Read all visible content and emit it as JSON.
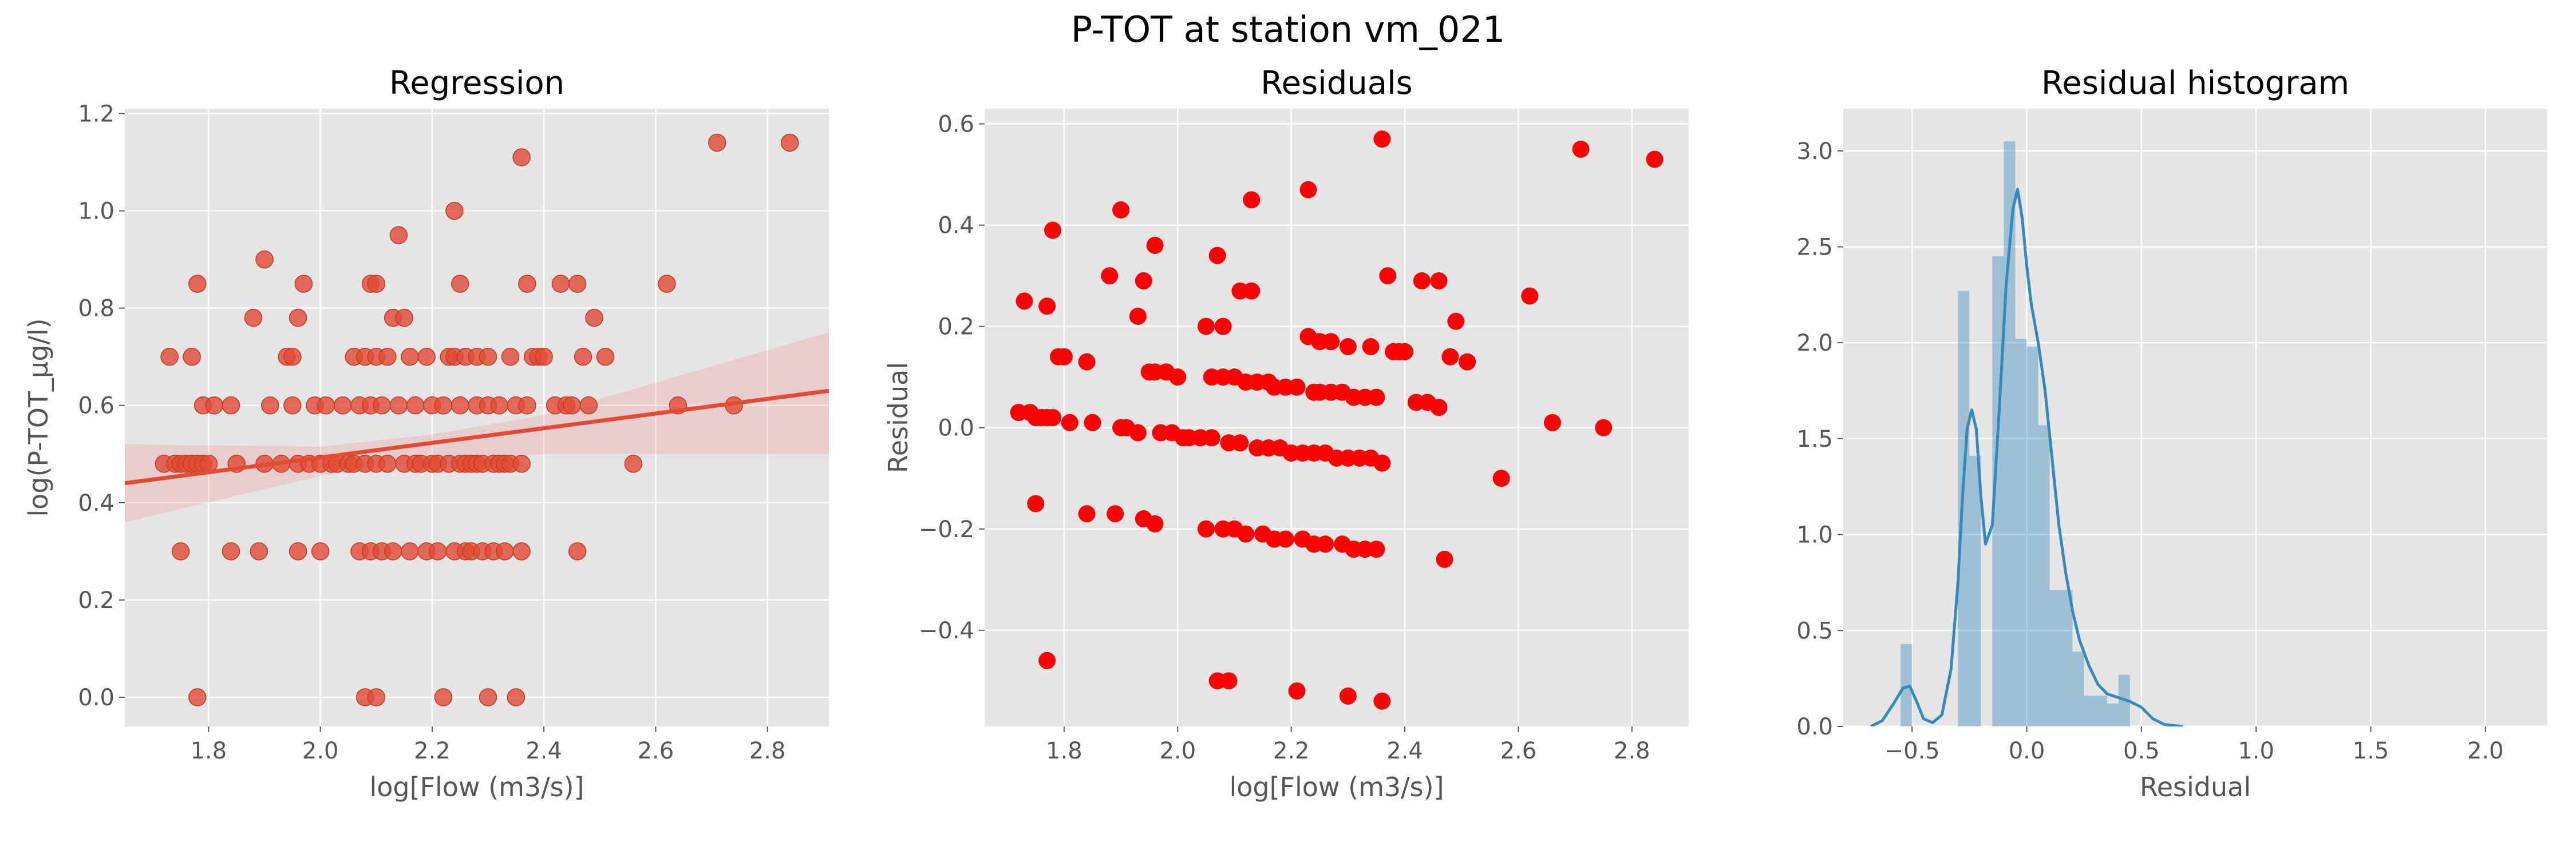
{
  "figure": {
    "title": "P-TOT at station vm_021"
  },
  "chart_data": [
    {
      "type": "scatter",
      "title": "Regression",
      "xlabel": "log[Flow (m3/s)]",
      "ylabel": "log(P-TOT_µg/l)",
      "xlim": [
        1.65,
        2.91
      ],
      "ylim": [
        -0.06,
        1.21
      ],
      "xticks": [
        1.8,
        2.0,
        2.2,
        2.4,
        2.6,
        2.8
      ],
      "yticks": [
        0.0,
        0.2,
        0.4,
        0.6,
        0.8,
        1.0,
        1.2
      ],
      "grid": true,
      "point_color": "#e24a33",
      "line_color": "#e24a33",
      "band_color": "#e24a33",
      "regression_line": {
        "x": [
          1.65,
          2.91
        ],
        "y": [
          0.44,
          0.63
        ]
      },
      "confidence_band": {
        "x": [
          1.65,
          2.0,
          2.2,
          2.4,
          2.91
        ],
        "lower": [
          0.36,
          0.455,
          0.49,
          0.5,
          0.5
        ],
        "upper": [
          0.52,
          0.515,
          0.54,
          0.58,
          0.75
        ]
      },
      "points": [
        [
          1.72,
          0.48
        ],
        [
          1.73,
          0.7
        ],
        [
          1.74,
          0.48
        ],
        [
          1.75,
          0.48
        ],
        [
          1.75,
          0.3
        ],
        [
          1.76,
          0.48
        ],
        [
          1.77,
          0.7
        ],
        [
          1.77,
          0.48
        ],
        [
          1.78,
          0.85
        ],
        [
          1.78,
          0.48
        ],
        [
          1.78,
          0.0
        ],
        [
          1.79,
          0.48
        ],
        [
          1.79,
          0.6
        ],
        [
          1.8,
          0.48
        ],
        [
          1.81,
          0.6
        ],
        [
          1.84,
          0.3
        ],
        [
          1.84,
          0.6
        ],
        [
          1.85,
          0.48
        ],
        [
          1.88,
          0.78
        ],
        [
          1.89,
          0.3
        ],
        [
          1.9,
          0.48
        ],
        [
          1.9,
          0.9
        ],
        [
          1.91,
          0.6
        ],
        [
          1.93,
          0.48
        ],
        [
          1.94,
          0.7
        ],
        [
          1.95,
          0.7
        ],
        [
          1.95,
          0.6
        ],
        [
          1.96,
          0.78
        ],
        [
          1.96,
          0.48
        ],
        [
          1.96,
          0.3
        ],
        [
          1.97,
          0.85
        ],
        [
          1.98,
          0.48
        ],
        [
          1.99,
          0.6
        ],
        [
          2.0,
          0.48
        ],
        [
          2.0,
          0.3
        ],
        [
          2.01,
          0.6
        ],
        [
          2.02,
          0.48
        ],
        [
          2.03,
          0.48
        ],
        [
          2.04,
          0.6
        ],
        [
          2.05,
          0.48
        ],
        [
          2.06,
          0.7
        ],
        [
          2.06,
          0.48
        ],
        [
          2.07,
          0.3
        ],
        [
          2.07,
          0.6
        ],
        [
          2.08,
          0.7
        ],
        [
          2.08,
          0.48
        ],
        [
          2.08,
          0.0
        ],
        [
          2.09,
          0.85
        ],
        [
          2.09,
          0.3
        ],
        [
          2.09,
          0.6
        ],
        [
          2.1,
          0.85
        ],
        [
          2.1,
          0.7
        ],
        [
          2.1,
          0.48
        ],
        [
          2.1,
          0.0
        ],
        [
          2.11,
          0.6
        ],
        [
          2.11,
          0.3
        ],
        [
          2.12,
          0.7
        ],
        [
          2.12,
          0.48
        ],
        [
          2.13,
          0.78
        ],
        [
          2.13,
          0.3
        ],
        [
          2.14,
          0.95
        ],
        [
          2.14,
          0.6
        ],
        [
          2.15,
          0.78
        ],
        [
          2.15,
          0.48
        ],
        [
          2.16,
          0.7
        ],
        [
          2.16,
          0.3
        ],
        [
          2.17,
          0.48
        ],
        [
          2.17,
          0.6
        ],
        [
          2.18,
          0.48
        ],
        [
          2.19,
          0.7
        ],
        [
          2.19,
          0.3
        ],
        [
          2.2,
          0.6
        ],
        [
          2.2,
          0.48
        ],
        [
          2.21,
          0.3
        ],
        [
          2.21,
          0.48
        ],
        [
          2.22,
          0.6
        ],
        [
          2.22,
          0.0
        ],
        [
          2.23,
          0.7
        ],
        [
          2.23,
          0.48
        ],
        [
          2.24,
          1.0
        ],
        [
          2.24,
          0.7
        ],
        [
          2.24,
          0.3
        ],
        [
          2.25,
          0.48
        ],
        [
          2.25,
          0.6
        ],
        [
          2.25,
          0.85
        ],
        [
          2.26,
          0.7
        ],
        [
          2.26,
          0.48
        ],
        [
          2.26,
          0.3
        ],
        [
          2.27,
          0.48
        ],
        [
          2.27,
          0.3
        ],
        [
          2.28,
          0.6
        ],
        [
          2.28,
          0.7
        ],
        [
          2.28,
          0.48
        ],
        [
          2.29,
          0.3
        ],
        [
          2.29,
          0.48
        ],
        [
          2.3,
          0.7
        ],
        [
          2.3,
          0.6
        ],
        [
          2.3,
          0.0
        ],
        [
          2.31,
          0.48
        ],
        [
          2.31,
          0.3
        ],
        [
          2.32,
          0.6
        ],
        [
          2.32,
          0.48
        ],
        [
          2.33,
          0.48
        ],
        [
          2.33,
          0.3
        ],
        [
          2.34,
          0.7
        ],
        [
          2.34,
          0.48
        ],
        [
          2.35,
          0.6
        ],
        [
          2.35,
          0.0
        ],
        [
          2.36,
          0.48
        ],
        [
          2.36,
          0.3
        ],
        [
          2.36,
          1.11
        ],
        [
          2.37,
          0.6
        ],
        [
          2.37,
          0.85
        ],
        [
          2.38,
          0.7
        ],
        [
          2.39,
          0.7
        ],
        [
          2.4,
          0.7
        ],
        [
          2.42,
          0.6
        ],
        [
          2.43,
          0.85
        ],
        [
          2.44,
          0.6
        ],
        [
          2.45,
          0.6
        ],
        [
          2.46,
          0.85
        ],
        [
          2.46,
          0.3
        ],
        [
          2.47,
          0.7
        ],
        [
          2.48,
          0.6
        ],
        [
          2.49,
          0.78
        ],
        [
          2.51,
          0.7
        ],
        [
          2.56,
          0.48
        ],
        [
          2.62,
          0.85
        ],
        [
          2.64,
          0.6
        ],
        [
          2.71,
          1.14
        ],
        [
          2.74,
          0.6
        ],
        [
          2.84,
          1.14
        ]
      ]
    },
    {
      "type": "scatter",
      "title": "Residuals",
      "xlabel": "log[Flow (m3/s)]",
      "ylabel": "Residual",
      "xlim": [
        1.66,
        2.9
      ],
      "ylim": [
        -0.59,
        0.63
      ],
      "xticks": [
        1.8,
        2.0,
        2.2,
        2.4,
        2.6,
        2.8
      ],
      "yticks": [
        -0.4,
        -0.2,
        0.0,
        0.2,
        0.4,
        0.6
      ],
      "ytick_labels": [
        "−0.4",
        "−0.2",
        "0.0",
        "0.2",
        "0.4",
        "0.6"
      ],
      "grid": true,
      "point_color": "#ff0000",
      "points": [
        [
          1.72,
          0.03
        ],
        [
          1.73,
          0.25
        ],
        [
          1.74,
          0.03
        ],
        [
          1.75,
          0.02
        ],
        [
          1.75,
          -0.15
        ],
        [
          1.76,
          0.02
        ],
        [
          1.77,
          0.24
        ],
        [
          1.77,
          0.02
        ],
        [
          1.77,
          -0.46
        ],
        [
          1.78,
          0.39
        ],
        [
          1.78,
          0.02
        ],
        [
          1.79,
          0.14
        ],
        [
          1.8,
          0.14
        ],
        [
          1.81,
          0.01
        ],
        [
          1.84,
          -0.17
        ],
        [
          1.84,
          0.13
        ],
        [
          1.85,
          0.01
        ],
        [
          1.88,
          0.3
        ],
        [
          1.89,
          -0.17
        ],
        [
          1.9,
          0.0
        ],
        [
          1.9,
          0.43
        ],
        [
          1.91,
          0.0
        ],
        [
          1.93,
          0.22
        ],
        [
          1.93,
          -0.01
        ],
        [
          1.94,
          0.29
        ],
        [
          1.94,
          -0.18
        ],
        [
          1.95,
          0.11
        ],
        [
          1.96,
          0.36
        ],
        [
          1.96,
          0.11
        ],
        [
          1.96,
          -0.19
        ],
        [
          1.97,
          -0.01
        ],
        [
          1.98,
          0.11
        ],
        [
          1.99,
          -0.01
        ],
        [
          2.0,
          0.1
        ],
        [
          2.01,
          -0.02
        ],
        [
          2.02,
          -0.02
        ],
        [
          2.04,
          -0.02
        ],
        [
          2.05,
          0.2
        ],
        [
          2.05,
          -0.2
        ],
        [
          2.06,
          0.1
        ],
        [
          2.06,
          -0.02
        ],
        [
          2.07,
          -0.5
        ],
        [
          2.07,
          0.34
        ],
        [
          2.08,
          0.2
        ],
        [
          2.08,
          0.1
        ],
        [
          2.08,
          -0.2
        ],
        [
          2.09,
          -0.03
        ],
        [
          2.09,
          -0.5
        ],
        [
          2.1,
          0.1
        ],
        [
          2.1,
          -0.2
        ],
        [
          2.11,
          0.27
        ],
        [
          2.11,
          -0.03
        ],
        [
          2.12,
          0.09
        ],
        [
          2.12,
          -0.21
        ],
        [
          2.13,
          0.27
        ],
        [
          2.13,
          0.45
        ],
        [
          2.14,
          0.09
        ],
        [
          2.14,
          -0.04
        ],
        [
          2.15,
          -0.21
        ],
        [
          2.16,
          0.09
        ],
        [
          2.16,
          -0.04
        ],
        [
          2.17,
          0.08
        ],
        [
          2.17,
          -0.22
        ],
        [
          2.18,
          -0.04
        ],
        [
          2.19,
          0.08
        ],
        [
          2.19,
          -0.22
        ],
        [
          2.2,
          -0.05
        ],
        [
          2.21,
          0.08
        ],
        [
          2.21,
          -0.52
        ],
        [
          2.22,
          -0.05
        ],
        [
          2.22,
          -0.22
        ],
        [
          2.23,
          0.18
        ],
        [
          2.23,
          0.47
        ],
        [
          2.24,
          0.07
        ],
        [
          2.24,
          -0.05
        ],
        [
          2.24,
          -0.23
        ],
        [
          2.25,
          0.17
        ],
        [
          2.25,
          0.07
        ],
        [
          2.26,
          -0.05
        ],
        [
          2.26,
          -0.23
        ],
        [
          2.27,
          0.17
        ],
        [
          2.27,
          0.07
        ],
        [
          2.28,
          -0.06
        ],
        [
          2.29,
          -0.23
        ],
        [
          2.29,
          0.07
        ],
        [
          2.3,
          0.16
        ],
        [
          2.3,
          -0.06
        ],
        [
          2.3,
          -0.53
        ],
        [
          2.31,
          0.06
        ],
        [
          2.31,
          -0.24
        ],
        [
          2.32,
          -0.06
        ],
        [
          2.33,
          0.06
        ],
        [
          2.33,
          -0.24
        ],
        [
          2.34,
          0.16
        ],
        [
          2.34,
          -0.06
        ],
        [
          2.35,
          -0.24
        ],
        [
          2.35,
          0.06
        ],
        [
          2.36,
          0.57
        ],
        [
          2.36,
          -0.07
        ],
        [
          2.36,
          -0.54
        ],
        [
          2.37,
          0.3
        ],
        [
          2.38,
          0.15
        ],
        [
          2.39,
          0.15
        ],
        [
          2.4,
          0.15
        ],
        [
          2.42,
          0.05
        ],
        [
          2.43,
          0.29
        ],
        [
          2.44,
          0.05
        ],
        [
          2.46,
          0.04
        ],
        [
          2.46,
          0.29
        ],
        [
          2.47,
          -0.26
        ],
        [
          2.48,
          0.14
        ],
        [
          2.49,
          0.21
        ],
        [
          2.51,
          0.13
        ],
        [
          2.57,
          -0.1
        ],
        [
          2.62,
          0.26
        ],
        [
          2.66,
          0.01
        ],
        [
          2.71,
          0.55
        ],
        [
          2.75,
          0.0
        ],
        [
          2.84,
          0.53
        ]
      ]
    },
    {
      "type": "bar",
      "title": "Residual histogram",
      "xlabel": "Residual",
      "ylabel": "",
      "xlim": [
        -0.8,
        2.27
      ],
      "ylim": [
        0,
        3.22
      ],
      "xticks": [
        -0.5,
        0.0,
        0.5,
        1.0,
        1.5,
        2.0
      ],
      "xtick_labels": [
        "−0.5",
        "0.0",
        "0.5",
        "1.0",
        "1.5",
        "2.0"
      ],
      "yticks": [
        0.0,
        0.5,
        1.0,
        1.5,
        2.0,
        2.5,
        3.0
      ],
      "grid": true,
      "bar_color": "#348abd",
      "kde_color": "#348abd",
      "bin_edges": [
        -0.55,
        -0.5,
        -0.45,
        -0.4,
        -0.35,
        -0.3,
        -0.25,
        -0.2,
        -0.15,
        -0.1,
        -0.05,
        0.0,
        0.05,
        0.1,
        0.15,
        0.2,
        0.25,
        0.3,
        0.35,
        0.4,
        0.45,
        0.5,
        0.55,
        0.6
      ],
      "values": [
        0.43,
        0,
        0,
        0,
        0,
        2.27,
        1.41,
        0,
        2.45,
        3.05,
        2.02,
        1.98,
        1.57,
        0.71,
        0.71,
        0.39,
        0.16,
        0.16,
        0.12,
        0.27,
        0,
        0,
        0
      ],
      "kde": {
        "x": [
          -0.68,
          -0.63,
          -0.58,
          -0.54,
          -0.51,
          -0.48,
          -0.45,
          -0.41,
          -0.37,
          -0.33,
          -0.3,
          -0.28,
          -0.26,
          -0.24,
          -0.22,
          -0.2,
          -0.18,
          -0.15,
          -0.12,
          -0.09,
          -0.06,
          -0.04,
          -0.02,
          0.0,
          0.02,
          0.05,
          0.08,
          0.11,
          0.14,
          0.17,
          0.2,
          0.23,
          0.27,
          0.31,
          0.35,
          0.4,
          0.45,
          0.5,
          0.55,
          0.6,
          0.68
        ],
        "y": [
          0.0,
          0.03,
          0.12,
          0.2,
          0.21,
          0.13,
          0.04,
          0.02,
          0.06,
          0.3,
          0.75,
          1.2,
          1.55,
          1.65,
          1.55,
          1.2,
          0.95,
          1.05,
          1.65,
          2.3,
          2.7,
          2.8,
          2.65,
          2.4,
          2.2,
          2.0,
          1.75,
          1.4,
          1.05,
          0.8,
          0.6,
          0.45,
          0.32,
          0.22,
          0.17,
          0.15,
          0.13,
          0.1,
          0.04,
          0.01,
          0.0
        ]
      }
    }
  ]
}
